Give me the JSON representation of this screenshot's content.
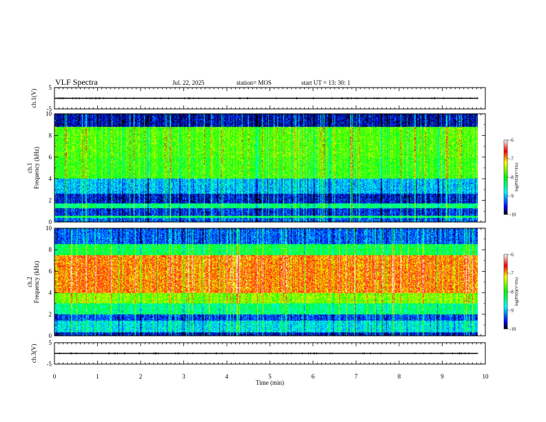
{
  "header": {
    "title": "VLF Spectra",
    "date": "Jul. 22, 2025",
    "station": "station= MOS",
    "start": "start UT =  13: 30: 1"
  },
  "chart_data": [
    {
      "type": "line",
      "ylabel": "ch.1(V)",
      "ylim": [
        -5,
        5
      ],
      "yticks": [
        "5",
        "-5"
      ],
      "x": [
        0,
        1,
        2,
        3,
        4,
        5,
        6,
        7,
        8,
        9,
        9.83
      ],
      "series": [
        {
          "values": [
            0,
            0,
            0,
            0,
            0,
            0,
            0,
            0,
            0,
            0,
            0
          ]
        }
      ]
    },
    {
      "type": "heatmap",
      "ylabel": "ch.1\nFrequency (kHz)",
      "ylim": [
        0,
        10
      ],
      "yticks": [
        "0",
        "2",
        "4",
        "6",
        "8",
        "10"
      ],
      "xlim": [
        0,
        10
      ],
      "data_end_min": 9.83,
      "colorbar": {
        "label": "log(PSD)(V²/Hz)",
        "range": [
          -10,
          -6
        ],
        "ticks": [
          "-6",
          "-7",
          "-8",
          "-9",
          "-10"
        ]
      },
      "band_levels_log_psd": [
        {
          "f": [
            0.0,
            0.4
          ],
          "level": -9.3
        },
        {
          "f": [
            0.4,
            0.6
          ],
          "level": -8.3
        },
        {
          "f": [
            0.6,
            1.3
          ],
          "level": -9.5
        },
        {
          "f": [
            1.3,
            1.7
          ],
          "level": -8.4
        },
        {
          "f": [
            1.7,
            2.6
          ],
          "level": -9.6
        },
        {
          "f": [
            2.6,
            4.0
          ],
          "level": -9.0
        },
        {
          "f": [
            4.0,
            6.0
          ],
          "level": -7.9
        },
        {
          "f": [
            6.0,
            8.8
          ],
          "level": -7.8
        },
        {
          "f": [
            8.8,
            10.0
          ],
          "level": -9.7
        }
      ]
    },
    {
      "type": "heatmap",
      "ylabel": "ch.2\nFrequency (kHz)",
      "ylim": [
        0,
        10
      ],
      "yticks": [
        "0",
        "2",
        "4",
        "6",
        "8",
        "10"
      ],
      "xlim": [
        0,
        10
      ],
      "data_end_min": 9.83,
      "colorbar": {
        "label": "log(PSD)(V²/Hz)",
        "range": [
          -10,
          -6
        ],
        "ticks": [
          "-6",
          "-7",
          "-8",
          "-9",
          "-10"
        ]
      },
      "band_levels_log_psd": [
        {
          "f": [
            0.0,
            0.3
          ],
          "level": -9.6
        },
        {
          "f": [
            0.3,
            1.4
          ],
          "level": -8.8
        },
        {
          "f": [
            1.4,
            2.0
          ],
          "level": -9.4
        },
        {
          "f": [
            2.0,
            3.0
          ],
          "level": -8.4
        },
        {
          "f": [
            3.0,
            4.0
          ],
          "level": -7.6
        },
        {
          "f": [
            4.0,
            7.5
          ],
          "level": -6.9
        },
        {
          "f": [
            7.5,
            8.5
          ],
          "level": -8.2
        },
        {
          "f": [
            8.5,
            10.0
          ],
          "level": -9.3
        }
      ]
    },
    {
      "type": "line",
      "ylabel": "ch.3(V)",
      "ylim": [
        -5,
        5
      ],
      "yticks": [
        "5",
        "-5"
      ],
      "x": [
        0,
        1,
        2,
        3,
        4,
        5,
        6,
        7,
        8,
        9,
        9.83
      ],
      "series": [
        {
          "values": [
            0,
            0,
            0,
            0,
            0,
            0,
            0,
            0,
            0,
            0,
            0
          ]
        }
      ]
    }
  ],
  "time_axis": {
    "label": "Time (min)",
    "range": [
      0,
      10
    ],
    "ticks": [
      "0",
      "1",
      "2",
      "3",
      "4",
      "5",
      "6",
      "7",
      "8",
      "9",
      "10"
    ]
  }
}
